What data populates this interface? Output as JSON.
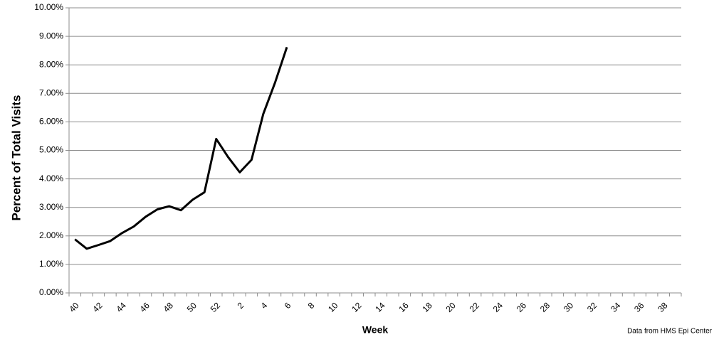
{
  "chart_data": {
    "type": "line",
    "y_label": "Percent of Total Visits",
    "x_label": "Week",
    "note": "Data from HMS Epi Center",
    "categories": [
      "40",
      null,
      "42",
      null,
      "44",
      null,
      "46",
      null,
      "48",
      null,
      "50",
      null,
      "52",
      null,
      "2",
      null,
      "4",
      null,
      "6",
      null,
      "8",
      null,
      "10",
      null,
      "12",
      null,
      "14",
      null,
      "16",
      null,
      "18",
      null,
      "20",
      null,
      "22",
      null,
      "24",
      null,
      "26",
      null,
      "28",
      null,
      "30",
      null,
      "32",
      null,
      "34",
      null,
      "36",
      null,
      "38",
      null
    ],
    "series": [
      {
        "color": "#000000",
        "values": [
          1.88,
          1.55,
          1.68,
          1.82,
          2.1,
          2.33,
          2.67,
          2.93,
          3.04,
          2.9,
          3.27,
          3.53,
          5.4,
          4.77,
          4.23,
          4.67,
          6.28,
          7.38,
          8.62,
          null,
          null,
          null,
          null,
          null,
          null,
          null,
          null,
          null,
          null,
          null,
          null,
          null,
          null,
          null,
          null,
          null,
          null,
          null,
          null,
          null,
          null,
          null,
          null,
          null,
          null,
          null,
          null,
          null,
          null,
          null,
          null,
          null
        ]
      }
    ],
    "ylim": [
      0,
      10
    ],
    "yticks": [
      {
        "value": 0,
        "label": "0.00%"
      },
      {
        "value": 1,
        "label": "1.00%"
      },
      {
        "value": 2,
        "label": "2.00%"
      },
      {
        "value": 3,
        "label": "3.00%"
      },
      {
        "value": 4,
        "label": "4.00%"
      },
      {
        "value": 5,
        "label": "5.00%"
      },
      {
        "value": 6,
        "label": "6.00%"
      },
      {
        "value": 7,
        "label": "7.00%"
      },
      {
        "value": 8,
        "label": "8.00%"
      },
      {
        "value": 9,
        "label": "9.00%"
      },
      {
        "value": 10,
        "label": "10.00%"
      }
    ],
    "grid": true
  }
}
